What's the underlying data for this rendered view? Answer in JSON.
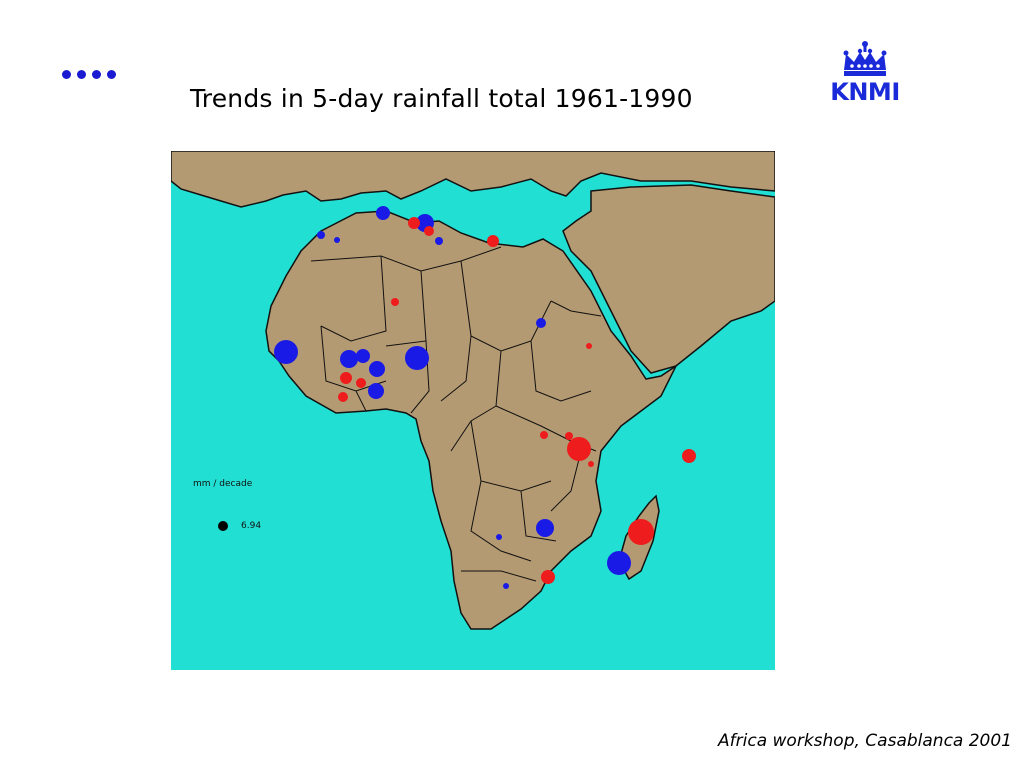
{
  "slide": {
    "title": "Trends in 5-day rainfall total 1961-1990",
    "logo_text": "KNMI",
    "footer": "Africa workshop, Casablanca 2001",
    "nav_icon": "ellipsis-dots-icon"
  },
  "map": {
    "legend_title": "mm / decade",
    "legend_value": "6.94",
    "colors": {
      "sea": "#22dfd3",
      "land": "#b49a72",
      "border": "#111111",
      "increase": "#1a1ae6",
      "decrease": "#ee1c1c"
    }
  }
}
